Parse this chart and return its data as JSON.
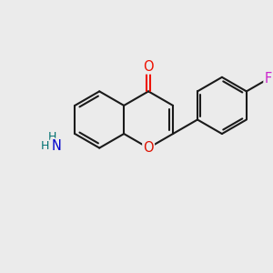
{
  "background_color": "#ebebeb",
  "bond_color": "#1a1a1a",
  "bond_width": 1.5,
  "atom_colors": {
    "O_carbonyl": "#ee1100",
    "O_ring": "#dd1100",
    "N": "#0000cc",
    "F": "#cc22cc",
    "H": "#007070"
  },
  "font_size_atoms": 10.5,
  "font_size_H": 9.0
}
